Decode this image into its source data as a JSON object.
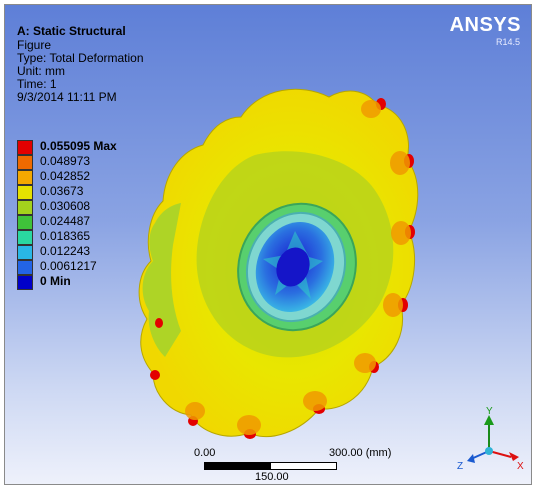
{
  "header": {
    "title": "A: Static Structural",
    "lines": [
      "Figure",
      "Type: Total Deformation",
      "Unit: mm",
      "Time: 1",
      "9/3/2014 11:11 PM"
    ]
  },
  "brand": {
    "name": "ANSYS",
    "version": "R14.5"
  },
  "legend": {
    "items": [
      {
        "label": "0.055095 Max",
        "color": "#e30000",
        "bold": true
      },
      {
        "label": "0.048973",
        "color": "#ef6a00"
      },
      {
        "label": "0.042852",
        "color": "#f4a800"
      },
      {
        "label": "0.03673",
        "color": "#e6e100"
      },
      {
        "label": "0.030608",
        "color": "#a4d21c"
      },
      {
        "label": "0.024487",
        "color": "#3fc23a"
      },
      {
        "label": "0.018365",
        "color": "#2ad7a0"
      },
      {
        "label": "0.012243",
        "color": "#29b7e6"
      },
      {
        "label": "0.0061217",
        "color": "#2364e6"
      },
      {
        "label": "0 Min",
        "color": "#0000c8",
        "bold": true
      }
    ]
  },
  "scale": {
    "left": "0.00",
    "right": "300.00 (mm)",
    "mid": "150.00"
  },
  "triad": {
    "y": "Y",
    "x": "X",
    "z": "Z"
  }
}
